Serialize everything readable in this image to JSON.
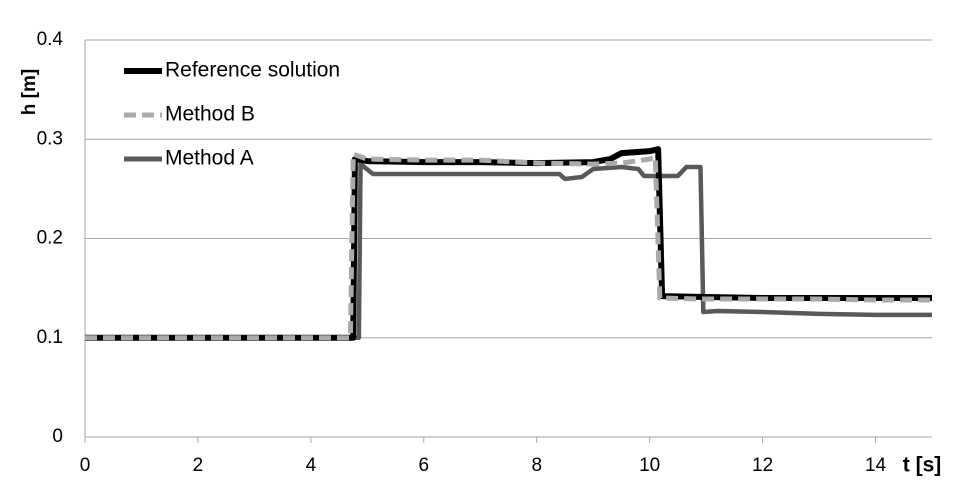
{
  "chart_data": {
    "type": "line",
    "x_label": "t [s]",
    "y_label": "h [m]",
    "xlim": [
      0,
      15
    ],
    "xticks": [
      0,
      2,
      4,
      6,
      8,
      10,
      12,
      14
    ],
    "ylim": [
      0,
      0.4
    ],
    "yticks": [
      0,
      0.1,
      0.2,
      0.3,
      0.4
    ],
    "grid": true,
    "legend": "upper left",
    "series": [
      {
        "name": "Reference solution",
        "color": "#000000",
        "dash": false,
        "x": [
          0,
          4.75,
          4.78,
          5,
          6,
          7,
          8,
          9,
          9.3,
          9.5,
          10,
          10.15,
          10.22,
          11,
          12,
          13,
          14,
          15
        ],
        "values": [
          0.1,
          0.1,
          0.28,
          0.278,
          0.277,
          0.277,
          0.276,
          0.277,
          0.28,
          0.286,
          0.288,
          0.29,
          0.142,
          0.141,
          0.14,
          0.14,
          0.14,
          0.14
        ]
      },
      {
        "name": "Method B",
        "color": "#aaaaaa",
        "dash": true,
        "x": [
          0,
          4.7,
          4.75,
          5,
          6,
          7,
          8,
          9,
          9.5,
          10,
          10.1,
          10.18,
          11,
          12,
          13,
          14,
          15
        ],
        "values": [
          0.1,
          0.1,
          0.285,
          0.28,
          0.279,
          0.279,
          0.276,
          0.275,
          0.276,
          0.28,
          0.282,
          0.14,
          0.139,
          0.139,
          0.139,
          0.138,
          0.138
        ]
      },
      {
        "name": "Method A",
        "color": "#595959",
        "dash": false,
        "x": [
          0,
          4.85,
          4.88,
          5.1,
          6,
          7,
          8,
          8.4,
          8.5,
          8.8,
          9,
          9.5,
          9.8,
          9.9,
          10.5,
          10.65,
          10.9,
          10.95,
          11.2,
          12,
          13,
          14,
          15
        ],
        "values": [
          0.1,
          0.1,
          0.275,
          0.265,
          0.265,
          0.265,
          0.265,
          0.265,
          0.26,
          0.262,
          0.27,
          0.272,
          0.27,
          0.263,
          0.263,
          0.272,
          0.272,
          0.126,
          0.127,
          0.126,
          0.124,
          0.123,
          0.123
        ]
      }
    ]
  }
}
